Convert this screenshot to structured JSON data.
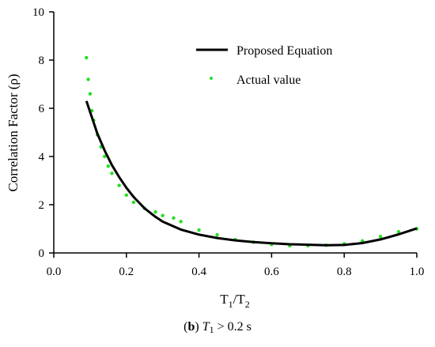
{
  "chart_data": {
    "type": "scatter",
    "xlabel": "T1/T2",
    "ylabel": "Correlation Factor (ρ)",
    "xlim": [
      0.0,
      1.0
    ],
    "ylim": [
      0,
      10
    ],
    "xticks": [
      0.0,
      0.2,
      0.4,
      0.6,
      0.8,
      1.0
    ],
    "xtick_labels": [
      "0.0",
      "0.2",
      "0.4",
      "0.6",
      "0.8",
      "1.0"
    ],
    "yticks": [
      0,
      2,
      4,
      6,
      8,
      10
    ],
    "ytick_labels": [
      "0",
      "2",
      "4",
      "6",
      "8",
      "10"
    ],
    "grid": false,
    "legend_position": "top-right",
    "series": [
      {
        "name": "Proposed Equation",
        "kind": "line",
        "color": "#000000",
        "x": [
          0.09,
          0.1,
          0.12,
          0.14,
          0.16,
          0.18,
          0.2,
          0.22,
          0.25,
          0.28,
          0.3,
          0.35,
          0.4,
          0.45,
          0.5,
          0.55,
          0.6,
          0.65,
          0.7,
          0.75,
          0.8,
          0.85,
          0.9,
          0.95,
          1.0
        ],
        "y": [
          6.3,
          5.85,
          4.95,
          4.25,
          3.65,
          3.15,
          2.7,
          2.32,
          1.85,
          1.5,
          1.3,
          0.97,
          0.76,
          0.62,
          0.52,
          0.45,
          0.4,
          0.36,
          0.34,
          0.32,
          0.33,
          0.41,
          0.56,
          0.77,
          1.02
        ]
      },
      {
        "name": "Actual value",
        "kind": "scatter",
        "color": "#22e022",
        "x": [
          0.09,
          0.095,
          0.1,
          0.105,
          0.11,
          0.12,
          0.13,
          0.14,
          0.15,
          0.16,
          0.18,
          0.2,
          0.22,
          0.25,
          0.28,
          0.3,
          0.33,
          0.35,
          0.4,
          0.45,
          0.5,
          0.55,
          0.6,
          0.65,
          0.7,
          0.75,
          0.8,
          0.85,
          0.9,
          0.95,
          1.0
        ],
        "y": [
          8.1,
          7.2,
          6.6,
          5.9,
          5.5,
          4.9,
          4.4,
          4.0,
          3.6,
          3.3,
          2.8,
          2.4,
          2.1,
          1.85,
          1.7,
          1.55,
          1.45,
          1.3,
          0.95,
          0.75,
          0.55,
          0.45,
          0.35,
          0.3,
          0.3,
          0.32,
          0.38,
          0.5,
          0.68,
          0.88,
          1.0
        ]
      }
    ]
  },
  "caption": {
    "letter": "b",
    "var_main": "T",
    "var_sub": "1",
    "condition": " > 0.2 s"
  }
}
